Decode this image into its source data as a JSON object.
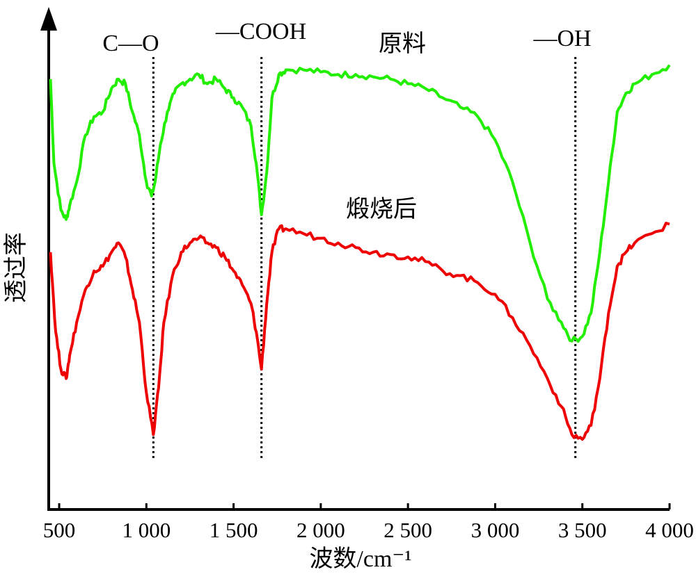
{
  "chart_data": {
    "type": "line",
    "title": "",
    "xlabel": "波数/cm⁻¹",
    "ylabel": "透过率",
    "xlim": [
      440,
      4000
    ],
    "ylim": [
      0,
      100
    ],
    "x_ticks": [
      {
        "value": 500,
        "label": "500"
      },
      {
        "value": 1000,
        "label": "1 000"
      },
      {
        "value": 1500,
        "label": "1 500"
      },
      {
        "value": 2000,
        "label": "2 000"
      },
      {
        "value": 2500,
        "label": "2 500"
      },
      {
        "value": 3000,
        "label": "3 000"
      },
      {
        "value": 3500,
        "label": "3 500"
      },
      {
        "value": 4000,
        "label": "4 000"
      }
    ],
    "reference_lines": [
      {
        "x": 1040,
        "label": "C—O"
      },
      {
        "x": 1660,
        "label": "—COOH"
      },
      {
        "x": 3460,
        "label": "—OH"
      }
    ],
    "series": [
      {
        "name": "原料",
        "color": "#22ee00",
        "points": [
          [
            450,
            92
          ],
          [
            470,
            74
          ],
          [
            510,
            64
          ],
          [
            540,
            62
          ],
          [
            560,
            65
          ],
          [
            600,
            70
          ],
          [
            650,
            80
          ],
          [
            700,
            84
          ],
          [
            750,
            85
          ],
          [
            800,
            90
          ],
          [
            840,
            92
          ],
          [
            880,
            91
          ],
          [
            920,
            85
          ],
          [
            960,
            80
          ],
          [
            1000,
            70
          ],
          [
            1030,
            67
          ],
          [
            1050,
            70
          ],
          [
            1080,
            78
          ],
          [
            1120,
            85
          ],
          [
            1160,
            89
          ],
          [
            1200,
            91
          ],
          [
            1250,
            92
          ],
          [
            1300,
            93
          ],
          [
            1350,
            91
          ],
          [
            1400,
            92
          ],
          [
            1450,
            90
          ],
          [
            1500,
            88
          ],
          [
            1550,
            86
          ],
          [
            1600,
            82
          ],
          [
            1630,
            74
          ],
          [
            1660,
            63
          ],
          [
            1690,
            72
          ],
          [
            1720,
            88
          ],
          [
            1760,
            93
          ],
          [
            1800,
            94
          ],
          [
            1900,
            94
          ],
          [
            2000,
            93.5
          ],
          [
            2100,
            93
          ],
          [
            2200,
            93
          ],
          [
            2300,
            92.5
          ],
          [
            2400,
            92
          ],
          [
            2500,
            91
          ],
          [
            2600,
            90
          ],
          [
            2700,
            88
          ],
          [
            2800,
            86
          ],
          [
            2900,
            84
          ],
          [
            3000,
            79
          ],
          [
            3100,
            70
          ],
          [
            3200,
            57
          ],
          [
            3300,
            45
          ],
          [
            3380,
            40
          ],
          [
            3440,
            36
          ],
          [
            3500,
            37
          ],
          [
            3550,
            42
          ],
          [
            3600,
            55
          ],
          [
            3650,
            70
          ],
          [
            3700,
            85
          ],
          [
            3750,
            89
          ],
          [
            3800,
            91
          ],
          [
            3900,
            93
          ],
          [
            4000,
            95
          ]
        ]
      },
      {
        "name": "煅烧后",
        "color": "#ee0000",
        "points": [
          [
            450,
            55
          ],
          [
            480,
            38
          ],
          [
            510,
            30
          ],
          [
            540,
            28
          ],
          [
            560,
            33
          ],
          [
            600,
            40
          ],
          [
            650,
            47
          ],
          [
            700,
            51
          ],
          [
            750,
            52
          ],
          [
            800,
            55
          ],
          [
            840,
            57
          ],
          [
            880,
            54
          ],
          [
            920,
            47
          ],
          [
            960,
            40
          ],
          [
            1000,
            25
          ],
          [
            1040,
            16
          ],
          [
            1070,
            26
          ],
          [
            1100,
            40
          ],
          [
            1150,
            50
          ],
          [
            1200,
            55
          ],
          [
            1250,
            57
          ],
          [
            1300,
            58
          ],
          [
            1350,
            57
          ],
          [
            1400,
            56
          ],
          [
            1450,
            54
          ],
          [
            1500,
            51
          ],
          [
            1550,
            48
          ],
          [
            1600,
            44
          ],
          [
            1630,
            38
          ],
          [
            1660,
            30
          ],
          [
            1690,
            44
          ],
          [
            1720,
            55
          ],
          [
            1760,
            60
          ],
          [
            1800,
            60
          ],
          [
            1900,
            59
          ],
          [
            2000,
            58
          ],
          [
            2100,
            57
          ],
          [
            2200,
            56
          ],
          [
            2300,
            55
          ],
          [
            2400,
            54.5
          ],
          [
            2500,
            54
          ],
          [
            2600,
            53
          ],
          [
            2700,
            51
          ],
          [
            2800,
            50
          ],
          [
            2900,
            48.5
          ],
          [
            3000,
            46
          ],
          [
            3100,
            41
          ],
          [
            3200,
            35
          ],
          [
            3300,
            28
          ],
          [
            3380,
            22
          ],
          [
            3440,
            16
          ],
          [
            3500,
            15
          ],
          [
            3550,
            18
          ],
          [
            3600,
            28
          ],
          [
            3650,
            42
          ],
          [
            3700,
            52
          ],
          [
            3750,
            55
          ],
          [
            3800,
            57
          ],
          [
            3900,
            59
          ],
          [
            4000,
            61
          ]
        ]
      }
    ]
  }
}
